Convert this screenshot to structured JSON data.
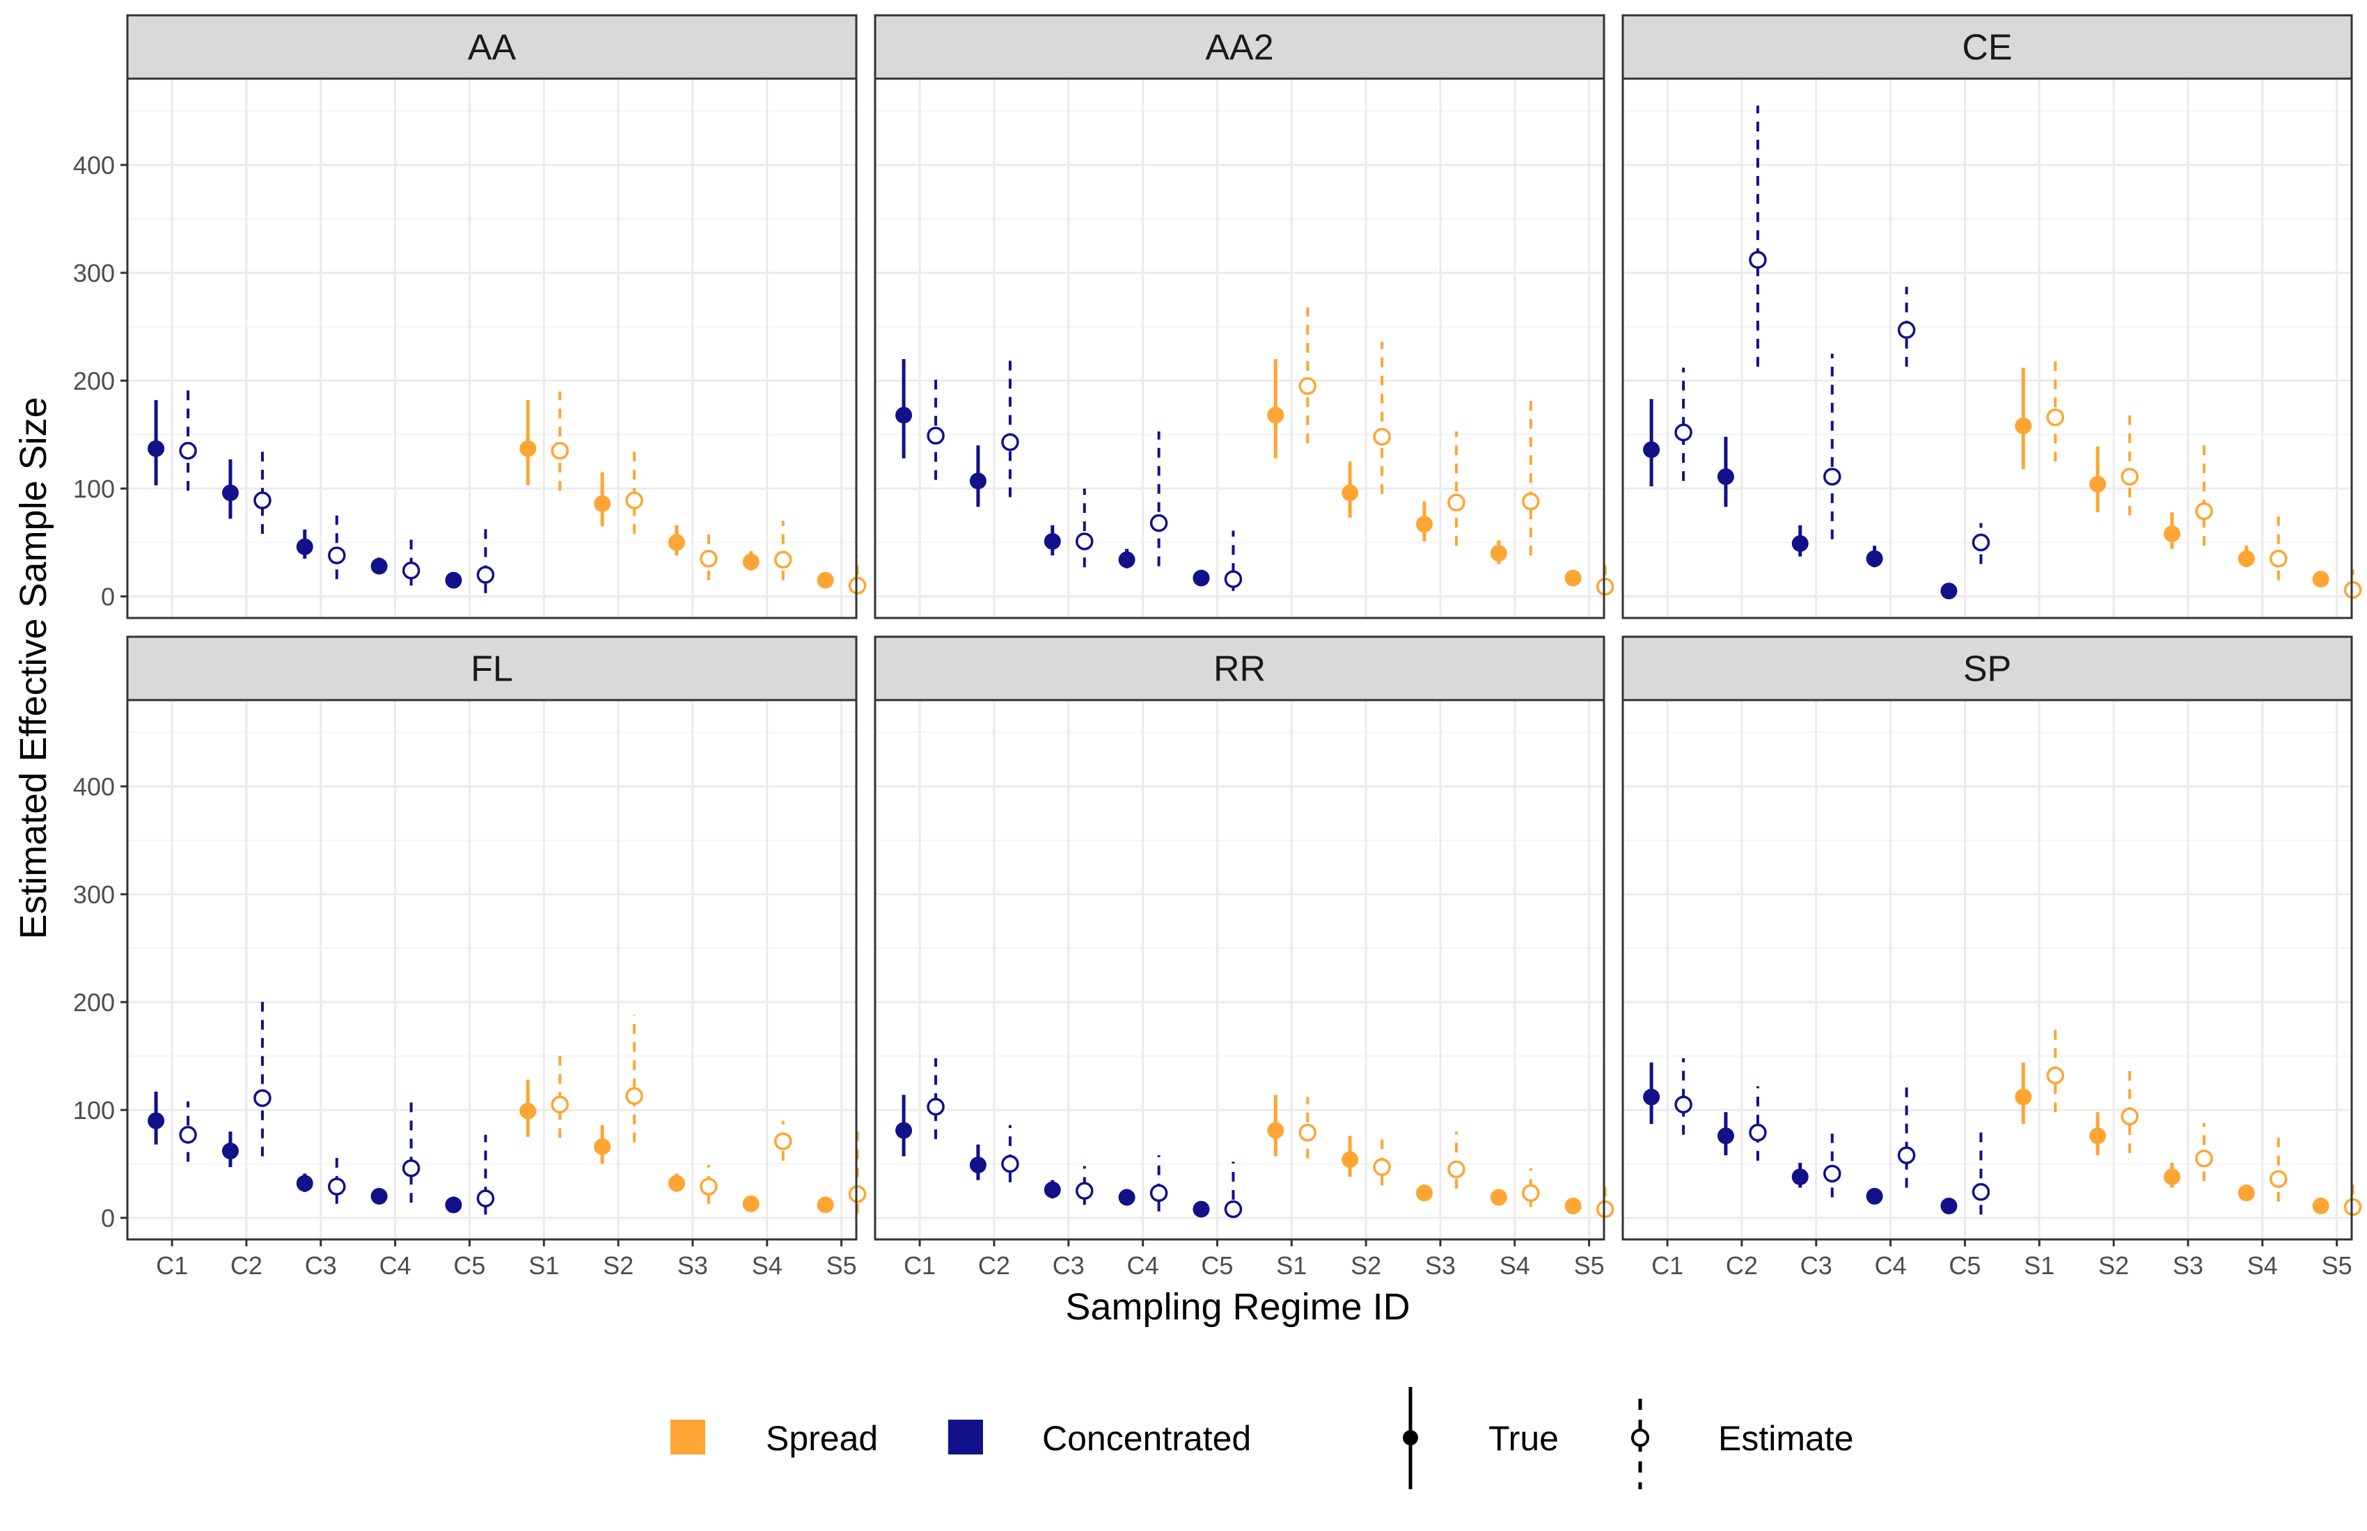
{
  "chart_data": {
    "type": "scatter",
    "ylabel": "Estimated Effective Sample Size",
    "xlabel": "Sampling Regime ID",
    "categories": [
      "C1",
      "C2",
      "C3",
      "C4",
      "C5",
      "S1",
      "S2",
      "S3",
      "S4",
      "S5"
    ],
    "yticks": [
      0,
      100,
      200,
      300,
      400
    ],
    "ylim": [
      -20,
      480
    ],
    "grid": true,
    "colors": {
      "Spread": "#FFA533",
      "Concentrated": "#11118A"
    },
    "legend": {
      "placement": "bottom",
      "group_items": [
        "Spread",
        "Concentrated"
      ],
      "type_items": [
        "True",
        "Estimate"
      ]
    },
    "panels": [
      {
        "name": "AA",
        "true": [
          [
            137,
            103,
            182
          ],
          [
            96,
            72,
            127
          ],
          [
            46,
            35,
            62
          ],
          [
            28,
            22,
            36
          ],
          [
            15,
            11,
            20
          ],
          [
            137,
            103,
            182
          ],
          [
            86,
            65,
            115
          ],
          [
            50,
            38,
            66
          ],
          [
            32,
            24,
            42
          ],
          [
            15,
            11,
            20
          ]
        ],
        "estimate": [
          [
            135,
            98,
            193
          ],
          [
            89,
            58,
            138
          ],
          [
            38,
            16,
            75
          ],
          [
            24,
            10,
            60
          ],
          [
            20,
            3,
            63
          ],
          [
            135,
            98,
            190
          ],
          [
            89,
            58,
            140
          ],
          [
            35,
            15,
            65
          ],
          [
            34,
            15,
            70
          ],
          [
            10,
            3,
            37
          ]
        ]
      },
      {
        "name": "AA2",
        "true": [
          [
            168,
            128,
            220
          ],
          [
            107,
            83,
            140
          ],
          [
            51,
            38,
            66
          ],
          [
            34,
            26,
            44
          ],
          [
            17,
            13,
            22
          ],
          [
            168,
            128,
            220
          ],
          [
            96,
            73,
            125
          ],
          [
            67,
            51,
            88
          ],
          [
            40,
            30,
            52
          ],
          [
            17,
            13,
            22
          ]
        ],
        "estimate": [
          [
            149,
            108,
            208
          ],
          [
            143,
            92,
            220
          ],
          [
            51,
            27,
            100
          ],
          [
            68,
            28,
            153
          ],
          [
            16,
            5,
            61
          ],
          [
            195,
            142,
            268
          ],
          [
            148,
            95,
            236
          ],
          [
            87,
            47,
            153
          ],
          [
            88,
            38,
            188
          ],
          [
            9,
            3,
            35
          ]
        ]
      },
      {
        "name": "CE",
        "true": [
          [
            136,
            102,
            183
          ],
          [
            111,
            83,
            148
          ],
          [
            49,
            37,
            66
          ],
          [
            35,
            27,
            47
          ],
          [
            5,
            4,
            7
          ],
          [
            158,
            118,
            212
          ],
          [
            104,
            78,
            139
          ],
          [
            58,
            44,
            78
          ],
          [
            35,
            27,
            47
          ],
          [
            16,
            12,
            21
          ]
        ],
        "estimate": [
          [
            152,
            107,
            212
          ],
          [
            312,
            213,
            455
          ],
          [
            111,
            53,
            225
          ],
          [
            247,
            213,
            287
          ],
          [
            50,
            30,
            68
          ],
          [
            166,
            125,
            222
          ],
          [
            111,
            75,
            168
          ],
          [
            79,
            47,
            140
          ],
          [
            35,
            15,
            74
          ],
          [
            6,
            3,
            25
          ]
        ]
      },
      {
        "name": "FL",
        "true": [
          [
            90,
            68,
            117
          ],
          [
            62,
            47,
            80
          ],
          [
            32,
            24,
            41
          ],
          [
            20,
            15,
            26
          ],
          [
            12,
            9,
            15
          ],
          [
            99,
            75,
            128
          ],
          [
            66,
            50,
            86
          ],
          [
            32,
            24,
            41
          ],
          [
            13,
            10,
            17
          ],
          [
            12,
            9,
            15
          ]
        ],
        "estimate": [
          [
            77,
            52,
            108
          ],
          [
            111,
            57,
            208
          ],
          [
            29,
            13,
            61
          ],
          [
            46,
            14,
            114
          ],
          [
            18,
            3,
            77
          ],
          [
            105,
            74,
            152
          ],
          [
            113,
            70,
            188
          ],
          [
            29,
            13,
            49
          ],
          [
            71,
            53,
            90
          ],
          [
            22,
            4,
            88
          ]
        ]
      },
      {
        "name": "RR",
        "true": [
          [
            81,
            57,
            114
          ],
          [
            49,
            35,
            68
          ],
          [
            26,
            18,
            35
          ],
          [
            19,
            14,
            26
          ],
          [
            8,
            6,
            11
          ],
          [
            81,
            57,
            114
          ],
          [
            54,
            38,
            76
          ],
          [
            23,
            17,
            31
          ],
          [
            19,
            14,
            26
          ],
          [
            11,
            8,
            15
          ]
        ],
        "estimate": [
          [
            103,
            73,
            148
          ],
          [
            50,
            33,
            86
          ],
          [
            25,
            12,
            48
          ],
          [
            23,
            6,
            58
          ],
          [
            8,
            0,
            52
          ],
          [
            79,
            55,
            112
          ],
          [
            47,
            30,
            76
          ],
          [
            45,
            27,
            80
          ],
          [
            23,
            10,
            46
          ],
          [
            8,
            3,
            31
          ]
        ]
      },
      {
        "name": "SP",
        "true": [
          [
            112,
            87,
            144
          ],
          [
            76,
            58,
            98
          ],
          [
            38,
            28,
            51
          ],
          [
            20,
            15,
            26
          ],
          [
            11,
            8,
            15
          ],
          [
            112,
            87,
            144
          ],
          [
            76,
            58,
            98
          ],
          [
            38,
            28,
            51
          ],
          [
            23,
            17,
            31
          ],
          [
            11,
            8,
            15
          ]
        ],
        "estimate": [
          [
            105,
            77,
            148
          ],
          [
            79,
            53,
            122
          ],
          [
            41,
            19,
            78
          ],
          [
            58,
            28,
            124
          ],
          [
            24,
            3,
            82
          ],
          [
            132,
            98,
            177
          ],
          [
            94,
            60,
            142
          ],
          [
            55,
            34,
            88
          ],
          [
            36,
            15,
            75
          ],
          [
            10,
            5,
            35
          ]
        ]
      }
    ]
  }
}
